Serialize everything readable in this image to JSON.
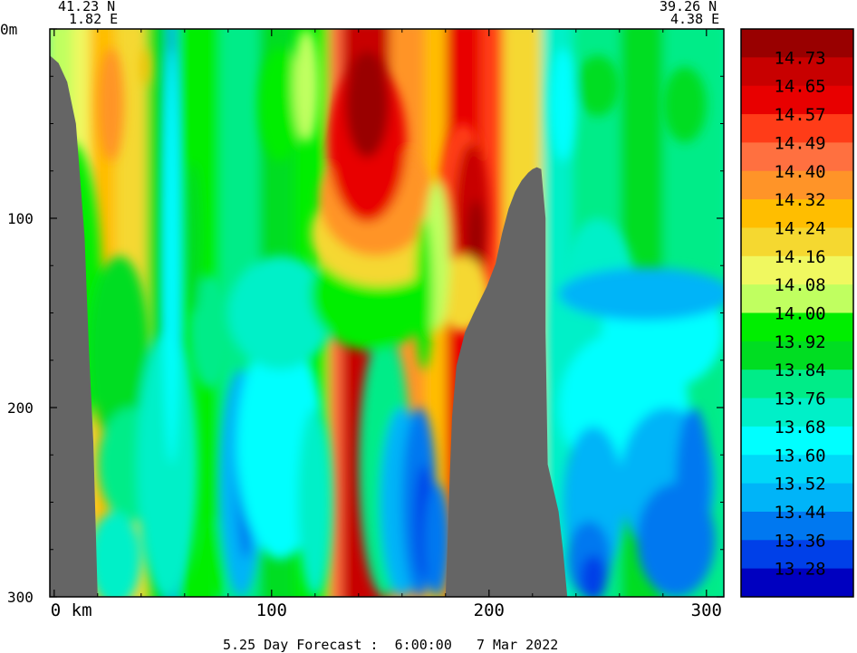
{
  "header": {
    "left_lat": "41.23 N",
    "left_lon": "1.82 E",
    "right_lat": "39.26 N",
    "right_lon": "4.38 E"
  },
  "footer": {
    "caption": "5.25 Day Forecast :  6:00:00   7 Mar 2022"
  },
  "chart_data": {
    "type": "heatmap",
    "title": "",
    "xlabel": "",
    "ylabel": "",
    "x_unit_label": "km",
    "y_unit_label": "m",
    "xlim": [
      -2,
      308
    ],
    "ylim": [
      300,
      0
    ],
    "x_ticks": [
      {
        "value": 0,
        "label": "0  km"
      },
      {
        "value": 100,
        "label": "100"
      },
      {
        "value": 200,
        "label": "200"
      },
      {
        "value": 300,
        "label": "300"
      }
    ],
    "y_ticks": [
      {
        "value": 0,
        "label": "0m"
      },
      {
        "value": 100,
        "label": "100"
      },
      {
        "value": 200,
        "label": "200"
      },
      {
        "value": 300,
        "label": "300"
      }
    ],
    "colorbar": {
      "labels": [
        "14.73",
        "14.65",
        "14.57",
        "14.49",
        "14.40",
        "14.32",
        "14.24",
        "14.16",
        "14.08",
        "14.00",
        "13.92",
        "13.84",
        "13.76",
        "13.68",
        "13.60",
        "13.52",
        "13.44",
        "13.36",
        "13.28"
      ],
      "colors_top_to_bottom": [
        "#990000",
        "#c80000",
        "#e80000",
        "#ff3c18",
        "#ff7040",
        "#ff9428",
        "#ffbe00",
        "#f5d830",
        "#f0f860",
        "#c0ff60",
        "#00ee00",
        "#00dd22",
        "#00ec88",
        "#00f0c8",
        "#00ffff",
        "#00d8f8",
        "#00b4f8",
        "#0078f0",
        "#0040e8",
        "#0000c0"
      ]
    },
    "seafloor_color": "#656565",
    "seafloor_profile": [
      {
        "x": -2,
        "depth": 14
      },
      {
        "x": 2,
        "depth": 18
      },
      {
        "x": 6,
        "depth": 28
      },
      {
        "x": 10,
        "depth": 50
      },
      {
        "x": 14,
        "depth": 110
      },
      {
        "x": 16,
        "depth": 170
      },
      {
        "x": 18,
        "depth": 218
      },
      {
        "x": 20,
        "depth": 300
      },
      {
        "x": 180,
        "depth": 300
      },
      {
        "x": 181,
        "depth": 270
      },
      {
        "x": 182,
        "depth": 235
      },
      {
        "x": 183,
        "depth": 205
      },
      {
        "x": 185,
        "depth": 178
      },
      {
        "x": 189,
        "depth": 160
      },
      {
        "x": 193,
        "depth": 150
      },
      {
        "x": 199,
        "depth": 136
      },
      {
        "x": 203,
        "depth": 124
      },
      {
        "x": 206,
        "depth": 108
      },
      {
        "x": 209,
        "depth": 95
      },
      {
        "x": 212,
        "depth": 86
      },
      {
        "x": 215,
        "depth": 80
      },
      {
        "x": 218,
        "depth": 76
      },
      {
        "x": 220,
        "depth": 74
      },
      {
        "x": 222,
        "depth": 73
      },
      {
        "x": 224,
        "depth": 74
      },
      {
        "x": 226,
        "depth": 100
      },
      {
        "x": 226,
        "depth": 160
      },
      {
        "x": 227,
        "depth": 230
      },
      {
        "x": 229,
        "depth": 240
      },
      {
        "x": 232,
        "depth": 255
      },
      {
        "x": 234,
        "depth": 275
      },
      {
        "x": 236,
        "depth": 300
      }
    ],
    "bands": [
      {
        "x0": -2,
        "x1": 10,
        "color": "#c0ff60",
        "value": "14.08"
      },
      {
        "x0": 10,
        "x1": 18,
        "color": "#f0f860",
        "value": "14.16"
      },
      {
        "x0": 18,
        "x1": 30,
        "color": "#ffbe00",
        "value": "14.24"
      },
      {
        "x0": 30,
        "x1": 44,
        "color": "#f5d830",
        "value": "14.16"
      },
      {
        "x0": 44,
        "x1": 54,
        "color": "#00dd22",
        "value": "13.92"
      },
      {
        "x0": 54,
        "x1": 58,
        "color": "#00b4f8",
        "value": "13.52"
      },
      {
        "x0": 58,
        "x1": 78,
        "color": "#00ee00",
        "value": "13.92"
      },
      {
        "x0": 78,
        "x1": 96,
        "color": "#00ec88",
        "value": "13.76"
      },
      {
        "x0": 96,
        "x1": 112,
        "color": "#00dd22",
        "value": "13.84"
      },
      {
        "x0": 112,
        "x1": 128,
        "color": "#00ee00",
        "value": "14.00"
      },
      {
        "x0": 128,
        "x1": 134,
        "color": "#ff7040",
        "value": "14.40"
      },
      {
        "x0": 134,
        "x1": 156,
        "color": "#c80000",
        "value": "14.65"
      },
      {
        "x0": 156,
        "x1": 172,
        "color": "#ff9428",
        "value": "14.32"
      },
      {
        "x0": 172,
        "x1": 182,
        "color": "#ffbe00",
        "value": "14.24"
      },
      {
        "x0": 182,
        "x1": 198,
        "color": "#e80000",
        "value": "14.57"
      },
      {
        "x0": 198,
        "x1": 208,
        "color": "#ff3c18",
        "value": "14.49"
      },
      {
        "x0": 208,
        "x1": 226,
        "color": "#f5d830",
        "value": "14.16"
      },
      {
        "x0": 226,
        "x1": 240,
        "color": "#00f0c8",
        "value": "13.68"
      },
      {
        "x0": 240,
        "x1": 262,
        "color": "#00ec88",
        "value": "13.76"
      },
      {
        "x0": 262,
        "x1": 282,
        "color": "#00dd22",
        "value": "13.84"
      },
      {
        "x0": 282,
        "x1": 308,
        "color": "#00ec88",
        "value": "13.76"
      }
    ],
    "blobs": [
      {
        "x": 8,
        "depth": 140,
        "rx": 14,
        "ry": 80,
        "color": "#00ee00"
      },
      {
        "x": 30,
        "depth": 170,
        "rx": 14,
        "ry": 50,
        "color": "#00dd22"
      },
      {
        "x": 26,
        "depth": 40,
        "rx": 6,
        "ry": 30,
        "color": "#ff9428"
      },
      {
        "x": 42,
        "depth": 20,
        "rx": 2,
        "ry": 10,
        "color": "#ffbe00"
      },
      {
        "x": 36,
        "depth": 230,
        "rx": 16,
        "ry": 30,
        "color": "#00ec88"
      },
      {
        "x": 28,
        "depth": 280,
        "rx": 12,
        "ry": 25,
        "color": "#00f0c8"
      },
      {
        "x": 52,
        "depth": 230,
        "rx": 14,
        "ry": 70,
        "color": "#00f0c8"
      },
      {
        "x": 54,
        "depth": 120,
        "rx": 4,
        "ry": 110,
        "color": "#00ffff"
      },
      {
        "x": 74,
        "depth": 280,
        "rx": 5,
        "ry": 20,
        "color": "#00ee00"
      },
      {
        "x": 72,
        "depth": 160,
        "rx": 10,
        "ry": 30,
        "color": "#00ec88"
      },
      {
        "x": 86,
        "depth": 240,
        "rx": 10,
        "ry": 60,
        "color": "#00b4f8"
      },
      {
        "x": 88,
        "depth": 240,
        "rx": 4,
        "ry": 40,
        "color": "#0078f0"
      },
      {
        "x": 104,
        "depth": 220,
        "rx": 20,
        "ry": 60,
        "color": "#00ffff"
      },
      {
        "x": 120,
        "depth": 250,
        "rx": 8,
        "ry": 50,
        "color": "#00f0c8"
      },
      {
        "x": 104,
        "depth": 150,
        "rx": 24,
        "ry": 30,
        "color": "#00f0c8"
      },
      {
        "x": 152,
        "depth": 230,
        "rx": 12,
        "ry": 70,
        "color": "#00ec88"
      },
      {
        "x": 160,
        "depth": 250,
        "rx": 10,
        "ry": 50,
        "color": "#00b4f8"
      },
      {
        "x": 168,
        "depth": 250,
        "rx": 8,
        "ry": 50,
        "color": "#0078f0"
      },
      {
        "x": 170,
        "depth": 260,
        "rx": 4,
        "ry": 30,
        "color": "#0040e8"
      },
      {
        "x": 176,
        "depth": 270,
        "rx": 6,
        "ry": 30,
        "color": "#0078f0"
      },
      {
        "x": 146,
        "depth": 140,
        "rx": 28,
        "ry": 30,
        "color": "#00ee00"
      },
      {
        "x": 150,
        "depth": 108,
        "rx": 32,
        "ry": 28,
        "color": "#f5d830"
      },
      {
        "x": 148,
        "depth": 90,
        "rx": 26,
        "ry": 30,
        "color": "#ff9428"
      },
      {
        "x": 144,
        "depth": 60,
        "rx": 18,
        "ry": 42,
        "color": "#e80000"
      },
      {
        "x": 144,
        "depth": 40,
        "rx": 10,
        "ry": 28,
        "color": "#990000"
      },
      {
        "x": 188,
        "depth": 100,
        "rx": 12,
        "ry": 50,
        "color": "#ff3c18"
      },
      {
        "x": 192,
        "depth": 100,
        "rx": 8,
        "ry": 40,
        "color": "#c80000"
      },
      {
        "x": 194,
        "depth": 110,
        "rx": 4,
        "ry": 20,
        "color": "#990000"
      },
      {
        "x": 188,
        "depth": 140,
        "rx": 12,
        "ry": 20,
        "color": "#f5d830"
      },
      {
        "x": 176,
        "depth": 120,
        "rx": 6,
        "ry": 40,
        "color": "#c0ff60"
      },
      {
        "x": 170,
        "depth": 140,
        "rx": 4,
        "ry": 40,
        "color": "#00ee00"
      },
      {
        "x": 250,
        "depth": 160,
        "rx": 20,
        "ry": 60,
        "color": "#00f0c8"
      },
      {
        "x": 262,
        "depth": 200,
        "rx": 30,
        "ry": 40,
        "color": "#00ffff"
      },
      {
        "x": 280,
        "depth": 160,
        "rx": 28,
        "ry": 30,
        "color": "#00ffff"
      },
      {
        "x": 248,
        "depth": 250,
        "rx": 14,
        "ry": 40,
        "color": "#00b4f8"
      },
      {
        "x": 246,
        "depth": 280,
        "rx": 10,
        "ry": 20,
        "color": "#0078f0"
      },
      {
        "x": 248,
        "depth": 290,
        "rx": 6,
        "ry": 12,
        "color": "#0040e8"
      },
      {
        "x": 282,
        "depth": 240,
        "rx": 22,
        "ry": 40,
        "color": "#00b4f8"
      },
      {
        "x": 286,
        "depth": 270,
        "rx": 18,
        "ry": 30,
        "color": "#0078f0"
      },
      {
        "x": 294,
        "depth": 240,
        "rx": 8,
        "ry": 40,
        "color": "#0078f0"
      },
      {
        "x": 272,
        "depth": 140,
        "rx": 40,
        "ry": 14,
        "color": "#00b4f8"
      },
      {
        "x": 290,
        "depth": 40,
        "rx": 10,
        "ry": 20,
        "color": "#00dd22"
      },
      {
        "x": 250,
        "depth": 30,
        "rx": 10,
        "ry": 16,
        "color": "#00dd22"
      },
      {
        "x": 234,
        "depth": 40,
        "rx": 6,
        "ry": 30,
        "color": "#00ffff"
      },
      {
        "x": 64,
        "depth": 110,
        "rx": 4,
        "ry": 40,
        "color": "#00dd22"
      },
      {
        "x": 104,
        "depth": 40,
        "rx": 10,
        "ry": 30,
        "color": "#00ee00"
      },
      {
        "x": 116,
        "depth": 30,
        "rx": 6,
        "ry": 30,
        "color": "#c0ff60"
      }
    ]
  }
}
